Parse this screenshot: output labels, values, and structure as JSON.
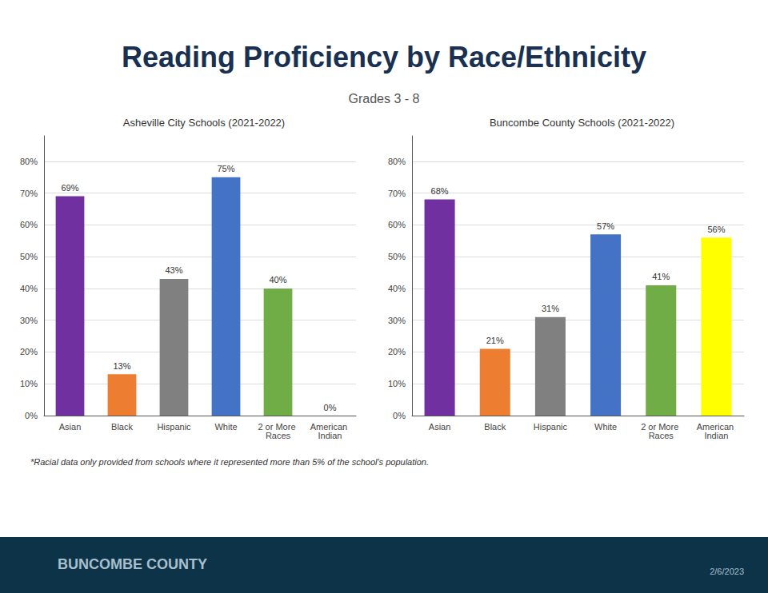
{
  "title": "Reading Proficiency by Race/Ethnicity",
  "subtitle": "Grades 3 - 8",
  "annotations": [
    "*Racial data only provided from schools where it represented more than 5% of the school's population.",
    "BUNCOMBE COUNTY",
    "2/6/2023"
  ],
  "chart_data": [
    {
      "type": "bar",
      "title": "Asheville City Schools (2021-2022)",
      "categories": [
        "Asian",
        "Black",
        "Hispanic",
        "White",
        "2 or More Races",
        "American Indian"
      ],
      "values": [
        0.69,
        0.13,
        0.43,
        0.75,
        0.4,
        0.0
      ],
      "value_labels": [
        "69%",
        "13%",
        "43%",
        "75%",
        "40%",
        "0%"
      ],
      "colors": [
        "#7030a0",
        "#ed7d31",
        "#808080",
        "#4472c4",
        "#70ad47",
        "#ffff00"
      ],
      "ylim": [
        0,
        0.88
      ],
      "yticks": [
        {
          "value": 0.0,
          "label": "0%"
        },
        {
          "value": 0.1,
          "label": "10%"
        },
        {
          "value": 0.2,
          "label": "20%"
        },
        {
          "value": 0.3,
          "label": "30%"
        },
        {
          "value": 0.4,
          "label": "40%"
        },
        {
          "value": 0.5,
          "label": "50%"
        },
        {
          "value": 0.6,
          "label": "60%"
        },
        {
          "value": 0.7,
          "label": "70%"
        },
        {
          "value": 0.8,
          "label": "80%"
        }
      ],
      "grid": true
    },
    {
      "type": "bar",
      "title": "Buncombe County Schools (2021-2022)",
      "categories": [
        "Asian",
        "Black",
        "Hispanic",
        "White",
        "2 or More Races",
        "American Indian"
      ],
      "values": [
        0.68,
        0.21,
        0.31,
        0.57,
        0.41,
        0.56
      ],
      "value_labels": [
        "68%",
        "21%",
        "31%",
        "57%",
        "41%",
        "56%"
      ],
      "colors": [
        "#7030a0",
        "#ed7d31",
        "#808080",
        "#4472c4",
        "#70ad47",
        "#ffff00"
      ],
      "ylim": [
        0,
        0.88
      ],
      "yticks": [
        {
          "value": 0.0,
          "label": "0%"
        },
        {
          "value": 0.1,
          "label": "10%"
        },
        {
          "value": 0.2,
          "label": "20%"
        },
        {
          "value": 0.3,
          "label": "30%"
        },
        {
          "value": 0.4,
          "label": "40%"
        },
        {
          "value": 0.5,
          "label": "50%"
        },
        {
          "value": 0.6,
          "label": "60%"
        },
        {
          "value": 0.7,
          "label": "70%"
        },
        {
          "value": 0.8,
          "label": "80%"
        }
      ],
      "grid": true
    }
  ]
}
